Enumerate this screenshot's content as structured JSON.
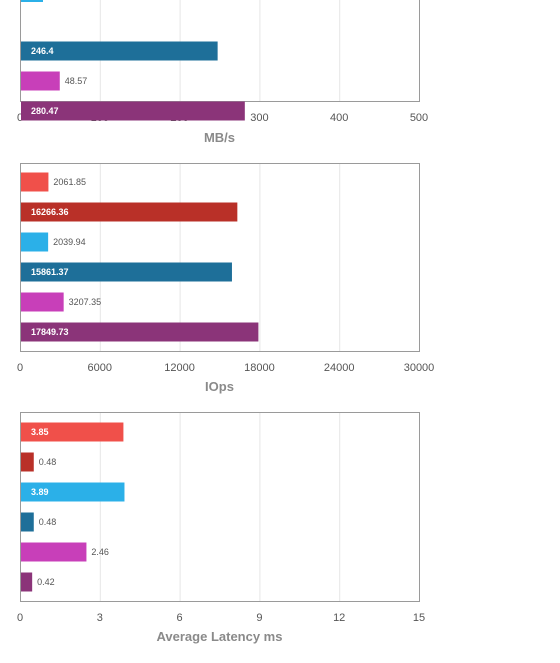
{
  "series_colors": [
    "#f0504a",
    "#b93028",
    "#2bb0e8",
    "#1e6f99",
    "#c83fb9",
    "#8b3479"
  ],
  "chart_data": [
    {
      "type": "bar",
      "orientation": "horizontal",
      "xlabel": "MB/s",
      "xlim": [
        0,
        500
      ],
      "xticks": [
        "0",
        "100",
        "200",
        "300",
        "400",
        "500"
      ],
      "grid": true,
      "values": [
        null,
        246.4,
        48.57,
        280.47
      ],
      "labels": [
        null,
        "246.4",
        "48.57",
        "280.47"
      ],
      "colors": [
        "#2bb0e8",
        "#1e6f99",
        "#c83fb9",
        "#8b3479"
      ]
    },
    {
      "type": "bar",
      "orientation": "horizontal",
      "xlabel": "IOps",
      "xlim": [
        0,
        30000
      ],
      "xticks": [
        "0",
        "6000",
        "12000",
        "18000",
        "24000",
        "30000"
      ],
      "grid": true,
      "values": [
        2061.85,
        16266.36,
        2039.94,
        15861.37,
        3207.35,
        17849.73
      ],
      "labels": [
        "2061.85",
        "16266.36",
        "2039.94",
        "15861.37",
        "3207.35",
        "17849.73"
      ],
      "colors": [
        "#f0504a",
        "#b93028",
        "#2bb0e8",
        "#1e6f99",
        "#c83fb9",
        "#8b3479"
      ]
    },
    {
      "type": "bar",
      "orientation": "horizontal",
      "xlabel": "Average Latency ms",
      "xlim": [
        0,
        15
      ],
      "xticks": [
        "0",
        "3",
        "6",
        "9",
        "12",
        "15"
      ],
      "grid": true,
      "values": [
        3.85,
        0.48,
        3.89,
        0.48,
        2.46,
        0.42
      ],
      "labels": [
        "3.85",
        "0.48",
        "3.89",
        "0.48",
        "2.46",
        "0.42"
      ],
      "colors": [
        "#f0504a",
        "#b93028",
        "#2bb0e8",
        "#1e6f99",
        "#c83fb9",
        "#8b3479"
      ]
    }
  ]
}
